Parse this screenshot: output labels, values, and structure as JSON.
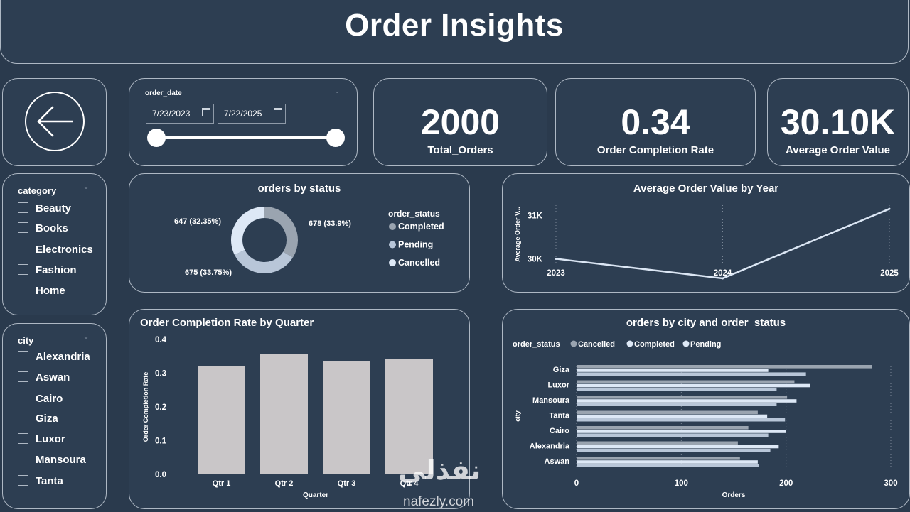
{
  "header": {
    "title": "Order Insights"
  },
  "date_slicer": {
    "label": "order_date",
    "start": "7/23/2023",
    "end": "7/22/2025"
  },
  "kpis": [
    {
      "value": "2000",
      "label": "Total_Orders"
    },
    {
      "value": "0.34",
      "label": "Order Completion Rate"
    },
    {
      "value": "30.10K",
      "label": "Average Order Value"
    }
  ],
  "category_slicer": {
    "title": "category",
    "items": [
      "Beauty",
      "Books",
      "Electronics",
      "Fashion",
      "Home"
    ]
  },
  "city_slicer": {
    "title": "city",
    "items": [
      "Alexandria",
      "Aswan",
      "Cairo",
      "Giza",
      "Luxor",
      "Mansoura",
      "Tanta"
    ]
  },
  "watermark": {
    "arabic": "نفذلي",
    "url": "nafezly.com"
  },
  "colors": {
    "completed": "#9aa4b0",
    "pending": "#b8c6d8",
    "cancelled": "#dde8f6",
    "bar": "#c9c6c8",
    "background": "#2a3a4d"
  },
  "chart_data": [
    {
      "type": "pie",
      "title": "orders by status",
      "legend_title": "order_status",
      "legend_placement": "right",
      "categories": [
        "Completed",
        "Pending",
        "Cancelled"
      ],
      "values": [
        678,
        675,
        647
      ],
      "labels": [
        "678 (33.9%)",
        "675 (33.75%)",
        "647 (32.35%)"
      ]
    },
    {
      "type": "line",
      "title": "Average Order Value by Year",
      "ylabel": "Average Order V...",
      "x": [
        "2023",
        "2024",
        "2025"
      ],
      "values": [
        30000,
        29550,
        31150
      ],
      "yticks": [
        30000,
        31000
      ],
      "ytick_labels": [
        "30K",
        "31K"
      ],
      "ylim": [
        29500,
        31300
      ],
      "grid": false
    },
    {
      "type": "bar",
      "title": "Order Completion Rate by Quarter",
      "xlabel": "Quarter",
      "ylabel": "Order Completion Rate",
      "categories": [
        "Qtr 1",
        "Qtr 2",
        "Qtr 3",
        "Qtr 4"
      ],
      "values": [
        0.321,
        0.357,
        0.336,
        0.343
      ],
      "yticks": [
        "0.0",
        "0.1",
        "0.2",
        "0.3",
        "0.4"
      ],
      "ylim": [
        0,
        0.4
      ]
    },
    {
      "type": "bar",
      "orientation": "horizontal",
      "title": "orders by city and order_status",
      "legend_title": "order_status",
      "legend_placement": "top-left",
      "xlabel": "Orders",
      "ylabel": "city",
      "categories": [
        "Giza",
        "Luxor",
        "Mansoura",
        "Tanta",
        "Cairo",
        "Alexandria",
        "Aswan"
      ],
      "series": [
        {
          "name": "Cancelled",
          "values": [
            282,
            208,
            201,
            173,
            164,
            154,
            156
          ]
        },
        {
          "name": "Completed",
          "values": [
            183,
            223,
            210,
            182,
            200,
            193,
            173
          ]
        },
        {
          "name": "Pending",
          "values": [
            219,
            191,
            191,
            199,
            183,
            185,
            174
          ]
        }
      ],
      "xticks": [
        "0",
        "100",
        "200",
        "300"
      ],
      "xlim": [
        0,
        300
      ]
    }
  ]
}
